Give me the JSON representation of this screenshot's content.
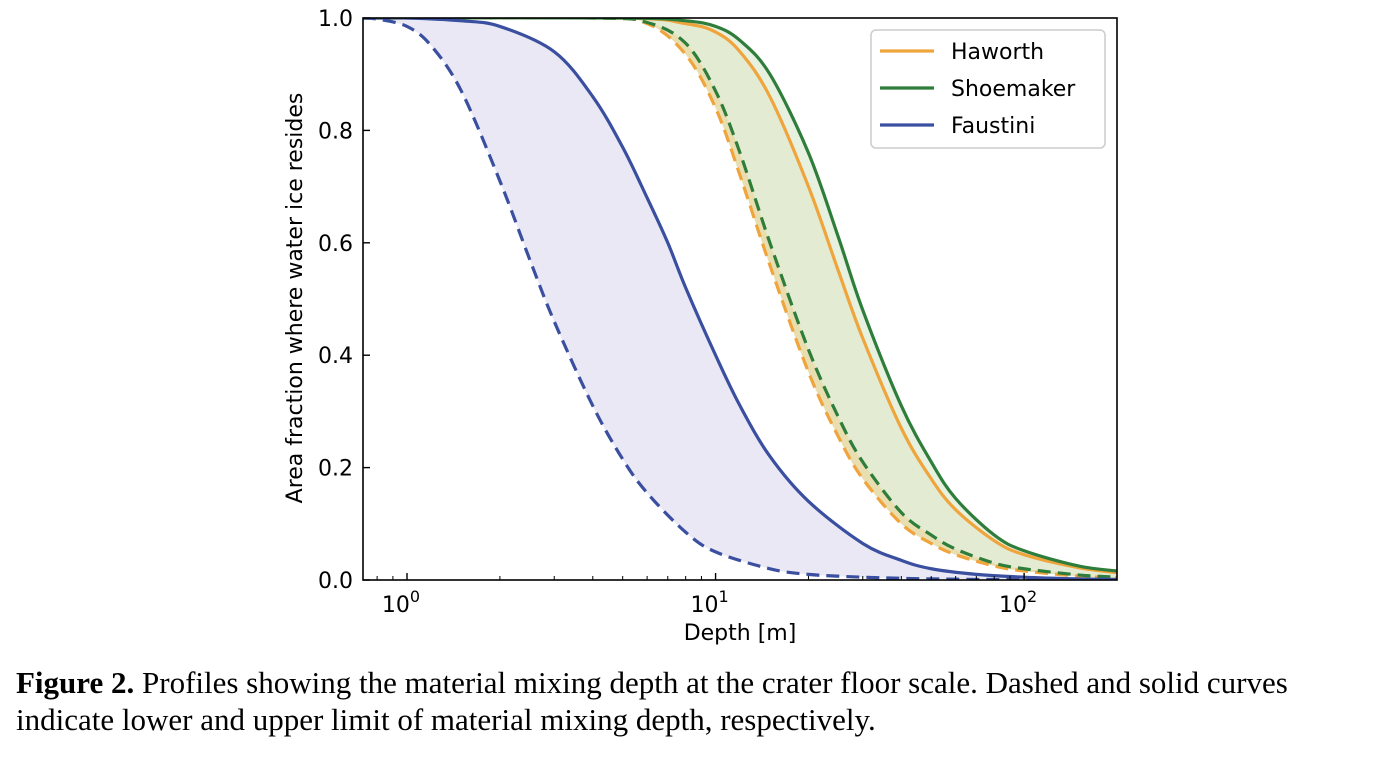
{
  "caption": {
    "label": "Figure 2.",
    "text": " Profiles showing the material mixing depth at the crater floor scale. Dashed and solid curves indicate lower and upper limit of material mixing depth, respectively."
  },
  "chart_data": {
    "type": "line",
    "xlabel": "Depth [m]",
    "ylabel": "Area fraction where water ice resides",
    "xscale": "log",
    "xlim": [
      0.72,
      200
    ],
    "ylim": [
      0.0,
      1.0
    ],
    "x_ticks": [
      {
        "value": 1,
        "base": "10",
        "exp": "0"
      },
      {
        "value": 10,
        "base": "10",
        "exp": "1"
      },
      {
        "value": 100,
        "base": "10",
        "exp": "2"
      }
    ],
    "y_ticks": [
      "0.0",
      "0.2",
      "0.4",
      "0.6",
      "0.8",
      "1.0"
    ],
    "grid": false,
    "legend_position": "top-right",
    "series": [
      {
        "name": "Haworth",
        "color": "#f0a43c",
        "fill": "#e4d8a2",
        "upper": {
          "x": [
            0.72,
            5,
            8,
            10,
            12,
            15,
            20,
            25,
            30,
            40,
            50,
            60,
            80,
            100,
            150,
            200
          ],
          "y": [
            1.0,
            1.0,
            0.99,
            0.975,
            0.94,
            0.86,
            0.7,
            0.55,
            0.43,
            0.27,
            0.18,
            0.125,
            0.07,
            0.045,
            0.022,
            0.013
          ]
        },
        "lower": {
          "x": [
            0.72,
            4,
            6,
            8,
            10,
            12,
            15,
            20,
            25,
            30,
            40,
            50,
            60,
            80,
            100,
            150,
            200
          ],
          "y": [
            1.0,
            1.0,
            0.99,
            0.935,
            0.84,
            0.72,
            0.56,
            0.37,
            0.255,
            0.18,
            0.1,
            0.065,
            0.045,
            0.025,
            0.016,
            0.007,
            0.004
          ]
        }
      },
      {
        "name": "Shoemaker",
        "color": "#2f7d3b",
        "fill": "#e2efd9",
        "upper": {
          "x": [
            0.72,
            5,
            8,
            10,
            12,
            15,
            20,
            25,
            30,
            40,
            50,
            60,
            80,
            100,
            150,
            200
          ],
          "y": [
            1.0,
            1.0,
            0.995,
            0.985,
            0.96,
            0.9,
            0.76,
            0.61,
            0.48,
            0.31,
            0.21,
            0.145,
            0.08,
            0.052,
            0.025,
            0.016
          ]
        },
        "lower": {
          "x": [
            0.72,
            4,
            6,
            8,
            10,
            12,
            15,
            20,
            25,
            30,
            40,
            50,
            60,
            80,
            100,
            150,
            200
          ],
          "y": [
            1.0,
            1.0,
            0.992,
            0.955,
            0.87,
            0.76,
            0.6,
            0.41,
            0.29,
            0.21,
            0.12,
            0.08,
            0.055,
            0.03,
            0.02,
            0.009,
            0.005
          ]
        }
      },
      {
        "name": "Faustini",
        "color": "#3a4fa0",
        "fill": "#e6e4f3",
        "upper": {
          "x": [
            0.72,
            1,
            1.5,
            2,
            3,
            4,
            5,
            6,
            7,
            8,
            10,
            12,
            15,
            20,
            30,
            40,
            50,
            70,
            100,
            150,
            200
          ],
          "y": [
            1.0,
            1.0,
            0.995,
            0.985,
            0.94,
            0.86,
            0.77,
            0.68,
            0.6,
            0.52,
            0.4,
            0.31,
            0.22,
            0.14,
            0.065,
            0.035,
            0.02,
            0.01,
            0.005,
            0.002,
            0.001
          ]
        },
        "lower": {
          "x": [
            0.72,
            0.8,
            1,
            1.2,
            1.5,
            2,
            2.5,
            3,
            4,
            5,
            6,
            8,
            10,
            15,
            20,
            30,
            50,
            100,
            200
          ],
          "y": [
            1.0,
            0.998,
            0.985,
            0.95,
            0.87,
            0.71,
            0.57,
            0.46,
            0.31,
            0.215,
            0.155,
            0.085,
            0.05,
            0.02,
            0.01,
            0.005,
            0.002,
            0.0005,
            0.0
          ]
        }
      }
    ]
  }
}
